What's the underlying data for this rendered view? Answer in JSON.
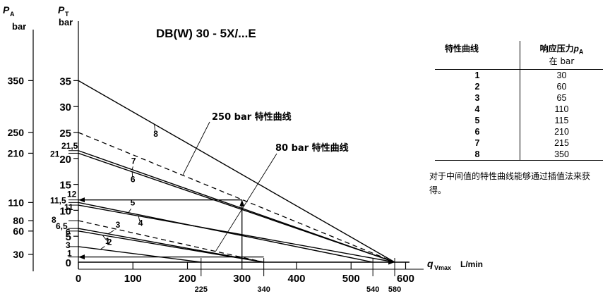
{
  "chart_data": {
    "type": "line",
    "title": "DB(W) 30 - 5X/...E",
    "left_axis": {
      "symbol": "P",
      "sub": "A",
      "unit": "bar",
      "ticks": [
        "30",
        "60",
        "80",
        "110",
        "210",
        "250",
        "350"
      ]
    },
    "y_axis": {
      "symbol": "P",
      "sub": "T",
      "unit": "bar",
      "ylim": [
        0,
        36
      ],
      "ticks": [
        0,
        5,
        10,
        15,
        20,
        25,
        30,
        35
      ],
      "extra_labels": [
        {
          "value": 1,
          "label": "1"
        },
        {
          "value": 3,
          "label": "3"
        },
        {
          "value": 6,
          "label": "6"
        },
        {
          "value": 6.5,
          "label": "6,5"
        },
        {
          "value": 8,
          "label": "8"
        },
        {
          "value": 11,
          "label": "11"
        },
        {
          "value": 11.5,
          "label": "11,5"
        },
        {
          "value": 12,
          "label": "12"
        },
        {
          "value": 21,
          "label": "21"
        },
        {
          "value": 21.5,
          "label": "21,5"
        }
      ]
    },
    "x_axis": {
      "symbol": "q",
      "sub": "Vmax",
      "unit": "L/min",
      "xlim": [
        0,
        620
      ],
      "ticks": [
        0,
        100,
        200,
        300,
        400,
        500,
        600
      ],
      "extra_ticks": [
        "225",
        "340",
        "540",
        "580"
      ]
    },
    "series": [
      {
        "name": "1",
        "x": [
          0,
          225
        ],
        "y": [
          3,
          0
        ]
      },
      {
        "name": "2",
        "x": [
          0,
          340
        ],
        "y": [
          6,
          0
        ]
      },
      {
        "name": "3",
        "x": [
          0,
          340
        ],
        "y": [
          6.5,
          0
        ]
      },
      {
        "name": "4",
        "x": [
          0,
          580
        ],
        "y": [
          11,
          0
        ]
      },
      {
        "name": "5",
        "x": [
          0,
          540
        ],
        "y": [
          11.5,
          0
        ]
      },
      {
        "name": "6",
        "x": [
          0,
          580
        ],
        "y": [
          21,
          0
        ]
      },
      {
        "name": "7",
        "x": [
          0,
          580
        ],
        "y": [
          21.5,
          0
        ]
      },
      {
        "name": "8",
        "x": [
          0,
          580
        ],
        "y": [
          35,
          0
        ]
      }
    ],
    "interpolated": [
      {
        "name": "80 bar 特性曲线",
        "x": [
          0,
          340
        ],
        "y": [
          8,
          0
        ]
      },
      {
        "name": "250 bar 特性曲线",
        "x": [
          0,
          580
        ],
        "y": [
          25,
          0
        ]
      }
    ],
    "markers": [
      {
        "from": [
          300,
          0
        ],
        "to": [
          300,
          12
        ]
      },
      {
        "from": [
          300,
          12
        ],
        "to": [
          0,
          12
        ]
      },
      {
        "from": [
          340,
          1
        ],
        "to": [
          0,
          1
        ]
      }
    ]
  },
  "table": {
    "header_curve": "特性曲线",
    "header_pressure": "响应压力",
    "header_symbol": "p",
    "header_sub": "A",
    "header_unit": "在 bar",
    "rows": [
      {
        "curve": "1",
        "pressure": "30"
      },
      {
        "curve": "2",
        "pressure": "60"
      },
      {
        "curve": "3",
        "pressure": "65"
      },
      {
        "curve": "4",
        "pressure": "110"
      },
      {
        "curve": "5",
        "pressure": "115"
      },
      {
        "curve": "6",
        "pressure": "210"
      },
      {
        "curve": "7",
        "pressure": "215"
      },
      {
        "curve": "8",
        "pressure": "350"
      }
    ]
  },
  "note": "对于中间值的特性曲线能够通过插值法来获得。"
}
